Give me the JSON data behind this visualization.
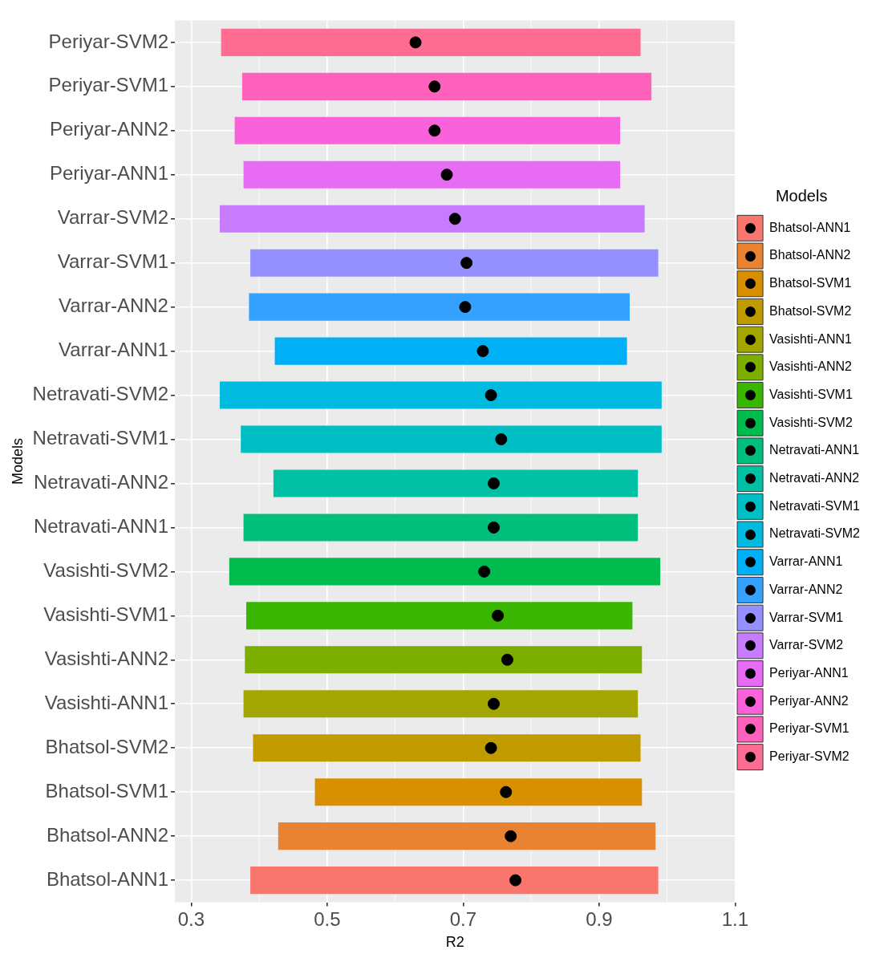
{
  "chart_data": {
    "type": "bar",
    "orientation": "horizontal",
    "xlabel": "R2",
    "ylabel": "Models",
    "legend_title": "Models",
    "legend": "right",
    "grid": true,
    "categories": [
      "Periyar-SVM2",
      "Periyar-SVM1",
      "Periyar-ANN2",
      "Periyar-ANN1",
      "Varrar-SVM2",
      "Varrar-SVM1",
      "Varrar-ANN2",
      "Varrar-ANN1",
      "Netravati-SVM2",
      "Netravati-SVM1",
      "Netravati-ANN2",
      "Netravati-ANN1",
      "Vasishti-SVM2",
      "Vasishti-SVM1",
      "Vasishti-ANN2",
      "Vasishti-ANN1",
      "Bhatsol-SVM2",
      "Bhatsol-SVM1",
      "Bhatsol-ANN2",
      "Bhatsol-ANN1"
    ],
    "series": [
      {
        "name": "Bhatsol-ANN1",
        "color": "#F8766D",
        "base": [
          null,
          null,
          null,
          null,
          null,
          null,
          null,
          null,
          null,
          null,
          null,
          null,
          null,
          null,
          null,
          null,
          null,
          null,
          null,
          0.387
        ],
        "values": [
          null,
          null,
          null,
          null,
          null,
          null,
          null,
          null,
          null,
          null,
          null,
          null,
          null,
          null,
          null,
          null,
          null,
          null,
          null,
          0.6
        ]
      },
      {
        "name": "Bhatsol-ANN2",
        "color": "#EA8331",
        "base": [
          null,
          null,
          null,
          null,
          null,
          null,
          null,
          null,
          null,
          null,
          null,
          null,
          null,
          null,
          null,
          null,
          null,
          null,
          0.428,
          null
        ],
        "values": [
          null,
          null,
          null,
          null,
          null,
          null,
          null,
          null,
          null,
          null,
          null,
          null,
          null,
          null,
          null,
          null,
          null,
          null,
          0.555,
          null
        ]
      },
      {
        "name": "Bhatsol-SVM1",
        "color": "#D89000",
        "base": [
          null,
          null,
          null,
          null,
          null,
          null,
          null,
          null,
          null,
          null,
          null,
          null,
          null,
          null,
          null,
          null,
          null,
          0.482,
          null,
          null
        ],
        "values": [
          null,
          null,
          null,
          null,
          null,
          null,
          null,
          null,
          null,
          null,
          null,
          null,
          null,
          null,
          null,
          null,
          null,
          0.481,
          null,
          null
        ]
      },
      {
        "name": "Bhatsol-SVM2",
        "color": "#C09B00",
        "base": [
          null,
          null,
          null,
          null,
          null,
          null,
          null,
          null,
          null,
          null,
          null,
          null,
          null,
          null,
          null,
          null,
          0.391,
          null,
          null,
          null
        ],
        "values": [
          null,
          null,
          null,
          null,
          null,
          null,
          null,
          null,
          null,
          null,
          null,
          null,
          null,
          null,
          null,
          null,
          0.57,
          null,
          null,
          null
        ]
      },
      {
        "name": "Vasishti-ANN1",
        "color": "#A3A500",
        "base": [
          null,
          null,
          null,
          null,
          null,
          null,
          null,
          null,
          null,
          null,
          null,
          null,
          null,
          null,
          null,
          0.377,
          null,
          null,
          null,
          null
        ],
        "values": [
          null,
          null,
          null,
          null,
          null,
          null,
          null,
          null,
          null,
          null,
          null,
          null,
          null,
          null,
          null,
          0.58,
          null,
          null,
          null,
          null
        ]
      },
      {
        "name": "Vasishti-ANN2",
        "color": "#7CAE00",
        "base": [
          null,
          null,
          null,
          null,
          null,
          null,
          null,
          null,
          null,
          null,
          null,
          null,
          null,
          null,
          0.379,
          null,
          null,
          null,
          null,
          null
        ],
        "values": [
          null,
          null,
          null,
          null,
          null,
          null,
          null,
          null,
          null,
          null,
          null,
          null,
          null,
          null,
          0.584,
          null,
          null,
          null,
          null,
          null
        ]
      },
      {
        "name": "Vasishti-SVM1",
        "color": "#39B600",
        "base": [
          null,
          null,
          null,
          null,
          null,
          null,
          null,
          null,
          null,
          null,
          null,
          null,
          null,
          0.381,
          null,
          null,
          null,
          null,
          null,
          null
        ],
        "values": [
          null,
          null,
          null,
          null,
          null,
          null,
          null,
          null,
          null,
          null,
          null,
          null,
          null,
          0.568,
          null,
          null,
          null,
          null,
          null,
          null
        ]
      },
      {
        "name": "Vasishti-SVM2",
        "color": "#00BB4E",
        "base": [
          null,
          null,
          null,
          null,
          null,
          null,
          null,
          null,
          null,
          null,
          null,
          null,
          0.356,
          null,
          null,
          null,
          null,
          null,
          null,
          null
        ],
        "values": [
          null,
          null,
          null,
          null,
          null,
          null,
          null,
          null,
          null,
          null,
          null,
          null,
          0.634,
          null,
          null,
          null,
          null,
          null,
          null,
          null
        ]
      },
      {
        "name": "Netravati-ANN1",
        "color": "#00BF7D",
        "base": [
          null,
          null,
          null,
          null,
          null,
          null,
          null,
          null,
          null,
          null,
          null,
          0.377,
          null,
          null,
          null,
          null,
          null,
          null,
          null,
          null
        ],
        "values": [
          null,
          null,
          null,
          null,
          null,
          null,
          null,
          null,
          null,
          null,
          null,
          0.58,
          null,
          null,
          null,
          null,
          null,
          null,
          null,
          null
        ]
      },
      {
        "name": "Netravati-ANN2",
        "color": "#00C1A3",
        "base": [
          null,
          null,
          null,
          null,
          null,
          null,
          null,
          null,
          null,
          null,
          0.421,
          null,
          null,
          null,
          null,
          null,
          null,
          null,
          null,
          null
        ],
        "values": [
          null,
          null,
          null,
          null,
          null,
          null,
          null,
          null,
          null,
          null,
          0.536,
          null,
          null,
          null,
          null,
          null,
          null,
          null,
          null,
          null
        ]
      },
      {
        "name": "Netravati-SVM1",
        "color": "#00BFC4",
        "base": [
          null,
          null,
          null,
          null,
          null,
          null,
          null,
          null,
          null,
          0.373,
          null,
          null,
          null,
          null,
          null,
          null,
          null,
          null,
          null,
          null
        ],
        "values": [
          null,
          null,
          null,
          null,
          null,
          null,
          null,
          null,
          null,
          0.619,
          null,
          null,
          null,
          null,
          null,
          null,
          null,
          null,
          null,
          null
        ]
      },
      {
        "name": "Netravati-SVM2",
        "color": "#00BAE0",
        "base": [
          null,
          null,
          null,
          null,
          null,
          null,
          null,
          null,
          0.342,
          null,
          null,
          null,
          null,
          null,
          null,
          null,
          null,
          null,
          null,
          null
        ],
        "values": [
          null,
          null,
          null,
          null,
          null,
          null,
          null,
          null,
          0.65,
          null,
          null,
          null,
          null,
          null,
          null,
          null,
          null,
          null,
          null,
          null
        ]
      },
      {
        "name": "Varrar-ANN1",
        "color": "#00B0F6",
        "base": [
          null,
          null,
          null,
          null,
          null,
          null,
          null,
          0.423,
          null,
          null,
          null,
          null,
          null,
          null,
          null,
          null,
          null,
          null,
          null,
          null
        ],
        "values": [
          null,
          null,
          null,
          null,
          null,
          null,
          null,
          0.518,
          null,
          null,
          null,
          null,
          null,
          null,
          null,
          null,
          null,
          null,
          null,
          null
        ]
      },
      {
        "name": "Varrar-ANN2",
        "color": "#35A2FF",
        "base": [
          null,
          null,
          null,
          null,
          null,
          null,
          0.385,
          null,
          null,
          null,
          null,
          null,
          null,
          null,
          null,
          null,
          null,
          null,
          null,
          null
        ],
        "values": [
          null,
          null,
          null,
          null,
          null,
          null,
          0.56,
          null,
          null,
          null,
          null,
          null,
          null,
          null,
          null,
          null,
          null,
          null,
          null,
          null
        ]
      },
      {
        "name": "Varrar-SVM1",
        "color": "#9590FF",
        "base": [
          null,
          null,
          null,
          null,
          null,
          0.387,
          null,
          null,
          null,
          null,
          null,
          null,
          null,
          null,
          null,
          null,
          null,
          null,
          null,
          null
        ],
        "values": [
          null,
          null,
          null,
          null,
          null,
          0.6,
          null,
          null,
          null,
          null,
          null,
          null,
          null,
          null,
          null,
          null,
          null,
          null,
          null,
          null
        ]
      },
      {
        "name": "Varrar-SVM2",
        "color": "#C77CFF",
        "base": [
          null,
          null,
          null,
          null,
          0.342,
          null,
          null,
          null,
          null,
          null,
          null,
          null,
          null,
          null,
          null,
          null,
          null,
          null,
          null,
          null
        ],
        "values": [
          null,
          null,
          null,
          null,
          0.625,
          null,
          null,
          null,
          null,
          null,
          null,
          null,
          null,
          null,
          null,
          null,
          null,
          null,
          null,
          null
        ]
      },
      {
        "name": "Periyar-ANN1",
        "color": "#E76BF3",
        "base": [
          null,
          null,
          null,
          0.377,
          null,
          null,
          null,
          null,
          null,
          null,
          null,
          null,
          null,
          null,
          null,
          null,
          null,
          null,
          null,
          null
        ],
        "values": [
          null,
          null,
          null,
          0.554,
          null,
          null,
          null,
          null,
          null,
          null,
          null,
          null,
          null,
          null,
          null,
          null,
          null,
          null,
          null,
          null
        ]
      },
      {
        "name": "Periyar-ANN2",
        "color": "#FA62DB",
        "base": [
          null,
          null,
          0.364,
          null,
          null,
          null,
          null,
          null,
          null,
          null,
          null,
          null,
          null,
          null,
          null,
          null,
          null,
          null,
          null,
          null
        ],
        "values": [
          null,
          null,
          0.567,
          null,
          null,
          null,
          null,
          null,
          null,
          null,
          null,
          null,
          null,
          null,
          null,
          null,
          null,
          null,
          null,
          null
        ]
      },
      {
        "name": "Periyar-SVM1",
        "color": "#FF62BC",
        "base": [
          null,
          0.375,
          null,
          null,
          null,
          null,
          null,
          null,
          null,
          null,
          null,
          null,
          null,
          null,
          null,
          null,
          null,
          null,
          null,
          null
        ],
        "values": [
          null,
          0.602,
          null,
          null,
          null,
          null,
          null,
          null,
          null,
          null,
          null,
          null,
          null,
          null,
          null,
          null,
          null,
          null,
          null,
          null
        ]
      },
      {
        "name": "Periyar-SVM2",
        "color": "#FF6C91",
        "base": [
          0.344,
          null,
          null,
          null,
          null,
          null,
          null,
          null,
          null,
          null,
          null,
          null,
          null,
          null,
          null,
          null,
          null,
          null,
          null,
          null
        ],
        "values": [
          0.617,
          null,
          null,
          null,
          null,
          null,
          null,
          null,
          null,
          null,
          null,
          null,
          null,
          null,
          null,
          null,
          null,
          null,
          null,
          null
        ]
      },
      {
        "type": "scatter",
        "marker": "circle",
        "color": "#000000",
        "values": [
          0.63,
          0.658,
          0.658,
          0.676,
          0.688,
          0.705,
          0.703,
          0.729,
          0.741,
          0.756,
          0.745,
          0.745,
          0.731,
          0.751,
          0.765,
          0.745,
          0.741,
          0.763,
          0.77,
          0.777
        ]
      }
    ],
    "xlim": [
      0.276,
      1.1
    ],
    "xticks": [
      0.3,
      0.5,
      0.7,
      0.9,
      1.1
    ]
  }
}
